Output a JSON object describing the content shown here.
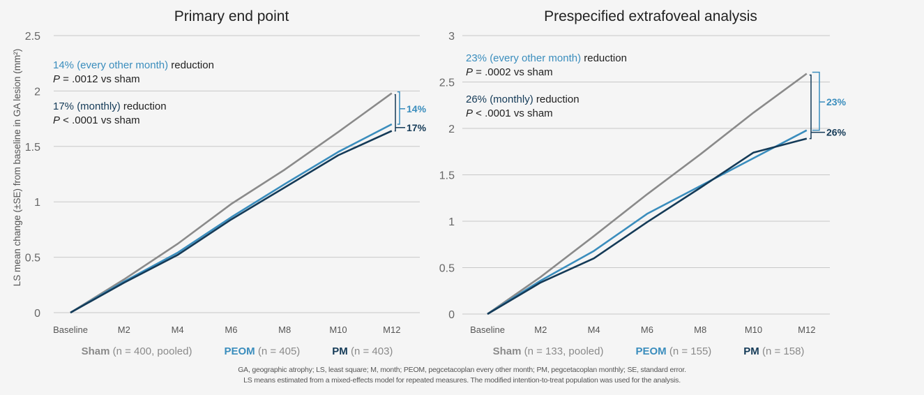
{
  "colors": {
    "sham": "#8a8a8a",
    "peom": "#3a8dbd",
    "pm": "#143a57",
    "grid": "#c8c8c8",
    "text": "#222222",
    "tick": "#666666"
  },
  "shared": {
    "ylabel": "LS mean change (±SE) from baseline in GA lesion (mm²)"
  },
  "chart_data": [
    {
      "type": "line",
      "title": "Primary end point",
      "xlabel": "",
      "ylabel": "LS mean change (±SE) from baseline in GA lesion (mm²)",
      "categories": [
        "Baseline",
        "M2",
        "M4",
        "M6",
        "M8",
        "M10",
        "M12"
      ],
      "ylim": [
        0,
        2.5
      ],
      "yticks": [
        0,
        0.5,
        1,
        1.5,
        2,
        2.5
      ],
      "ytick_labels": [
        "0",
        "0.5",
        "1",
        "1.5",
        "2",
        "2.5"
      ],
      "grid": true,
      "series": [
        {
          "name": "Sham",
          "key": "sham",
          "values": [
            0,
            0.3,
            0.62,
            0.98,
            1.29,
            1.63,
            1.98
          ]
        },
        {
          "name": "PEOM",
          "key": "peom",
          "values": [
            0,
            0.28,
            0.54,
            0.86,
            1.16,
            1.45,
            1.7
          ]
        },
        {
          "name": "PM",
          "key": "pm",
          "values": [
            0,
            0.27,
            0.52,
            0.84,
            1.13,
            1.42,
            1.64
          ]
        }
      ],
      "legend": [
        {
          "key": "sham",
          "name": "Sham",
          "detail": " (n = 400, pooled)"
        },
        {
          "key": "peom",
          "name": "PEOM",
          "detail": " (n = 405)"
        },
        {
          "key": "pm",
          "name": "PM",
          "detail": " (n = 403)"
        }
      ],
      "legend_position": "bottom",
      "annotations": {
        "peom_pct": "14% (every other month)",
        "peom_rest": " reduction",
        "peom_p_italic": "P",
        "peom_p": " = .0012 vs sham",
        "pm_pct": "17% (monthly)",
        "pm_rest": " reduction",
        "pm_p_italic": "P",
        "pm_p": " < .0001 vs sham",
        "bracket_peom": "14%",
        "bracket_pm": "17%"
      }
    },
    {
      "type": "line",
      "title": "Prespecified extrafoveal analysis",
      "xlabel": "",
      "ylabel": "",
      "categories": [
        "Baseline",
        "M2",
        "M4",
        "M6",
        "M8",
        "M10",
        "M12"
      ],
      "ylim": [
        0,
        3
      ],
      "yticks": [
        0,
        0.5,
        1,
        1.5,
        2,
        2.5,
        3
      ],
      "ytick_labels": [
        "0",
        "0.5",
        "1",
        "1.5",
        "2",
        "2.5",
        "3"
      ],
      "grid": true,
      "series": [
        {
          "name": "Sham",
          "key": "sham",
          "values": [
            0,
            0.4,
            0.84,
            1.29,
            1.72,
            2.17,
            2.59
          ]
        },
        {
          "name": "PEOM",
          "key": "peom",
          "values": [
            0,
            0.36,
            0.68,
            1.08,
            1.38,
            1.68,
            1.98
          ]
        },
        {
          "name": "PM",
          "key": "pm",
          "values": [
            0,
            0.34,
            0.6,
            0.99,
            1.36,
            1.74,
            1.89
          ]
        }
      ],
      "legend": [
        {
          "key": "sham",
          "name": "Sham",
          "detail": " (n = 133, pooled)"
        },
        {
          "key": "peom",
          "name": "PEOM",
          "detail": " (n = 155)"
        },
        {
          "key": "pm",
          "name": "PM",
          "detail": " (n = 158)"
        }
      ],
      "legend_position": "bottom",
      "annotations": {
        "peom_pct": "23% (every other month)",
        "peom_rest": " reduction",
        "peom_p_italic": "P",
        "peom_p": " = .0002 vs sham",
        "pm_pct": "26% (monthly)",
        "pm_rest": " reduction",
        "pm_p_italic": "P",
        "pm_p": " < .0001 vs sham",
        "bracket_peom": "23%",
        "bracket_pm": "26%"
      }
    }
  ],
  "footnotes": [
    "GA, geographic atrophy; LS, least square; M, month; PEOM, pegcetacoplan every other month; PM, pegcetacoplan monthly; SE, standard error.",
    "LS means estimated from a mixed-effects model for repeated measures. The modified intention-to-treat population was used for the analysis."
  ]
}
